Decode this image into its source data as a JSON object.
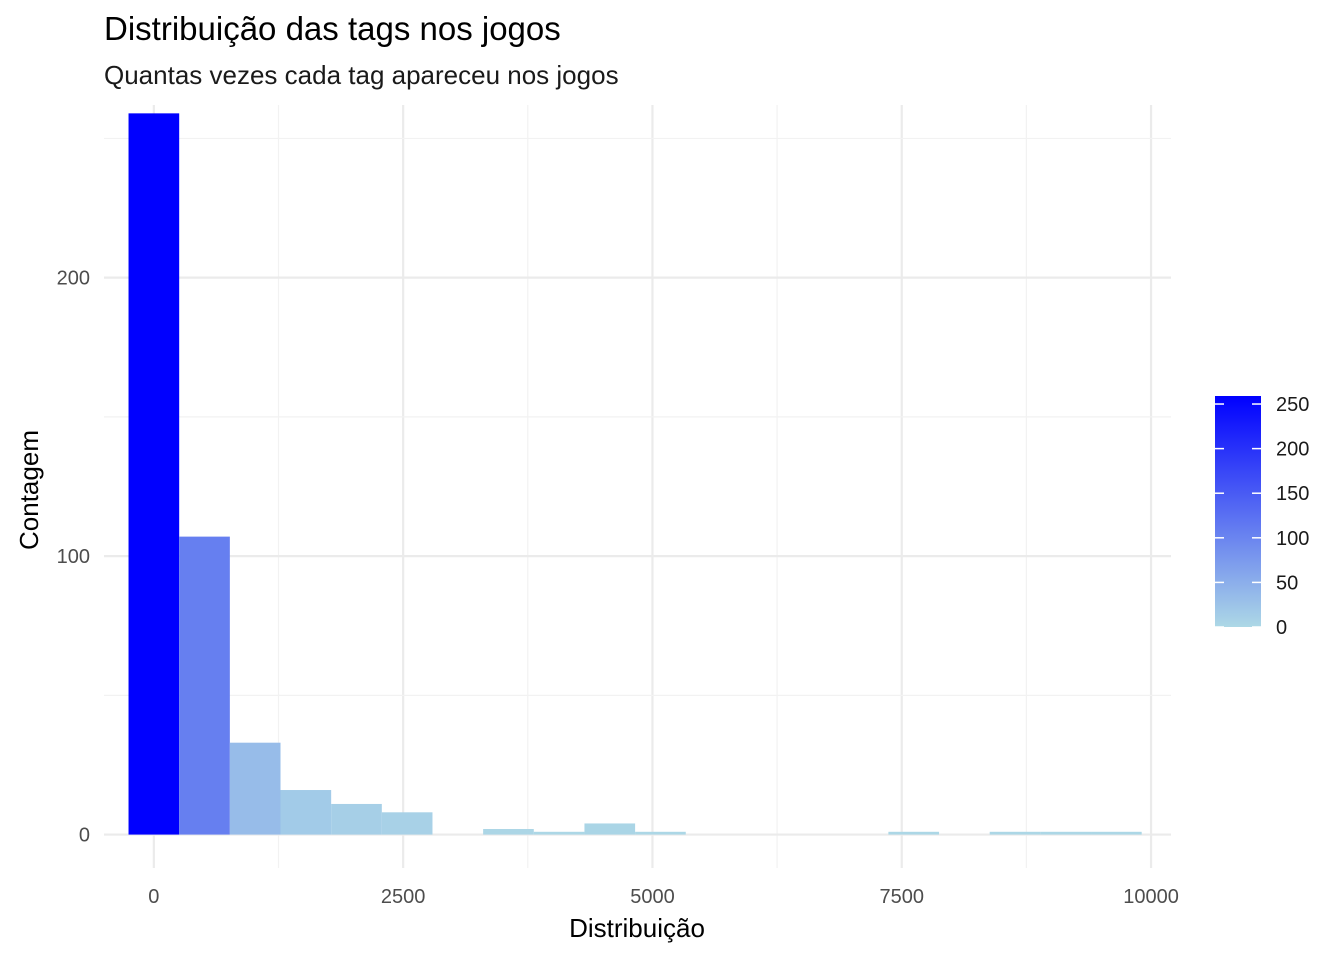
{
  "chart_data": {
    "type": "bar",
    "title": "Distribuição das tags nos jogos",
    "subtitle": "Quantas vezes cada tag apareceu nos jogos",
    "xlabel": "Distribuição",
    "ylabel": "Contagem",
    "xlim": [
      -500,
      10200
    ],
    "ylim": [
      -12,
      262
    ],
    "x_ticks": [
      0,
      2500,
      5000,
      7500,
      10000
    ],
    "x_tick_labels": [
      "0",
      "2500",
      "5000",
      "7500",
      "10000"
    ],
    "y_ticks": [
      0,
      100,
      200
    ],
    "y_tick_labels": [
      "0",
      "100",
      "200"
    ],
    "bin_width": 508,
    "bins": [
      {
        "x": 0,
        "count": 259
      },
      {
        "x": 508,
        "count": 107
      },
      {
        "x": 1016,
        "count": 33
      },
      {
        "x": 1524,
        "count": 16
      },
      {
        "x": 2032,
        "count": 11
      },
      {
        "x": 2540,
        "count": 8
      },
      {
        "x": 3048,
        "count": 0
      },
      {
        "x": 3556,
        "count": 2
      },
      {
        "x": 4064,
        "count": 1
      },
      {
        "x": 4572,
        "count": 4
      },
      {
        "x": 5080,
        "count": 1
      },
      {
        "x": 5588,
        "count": 0
      },
      {
        "x": 6096,
        "count": 0
      },
      {
        "x": 6604,
        "count": 0
      },
      {
        "x": 7112,
        "count": 0
      },
      {
        "x": 7620,
        "count": 1
      },
      {
        "x": 8128,
        "count": 0
      },
      {
        "x": 8636,
        "count": 1
      },
      {
        "x": 9144,
        "count": 1
      },
      {
        "x": 9652,
        "count": 1
      }
    ],
    "grid": true,
    "fill_scale": {
      "low_color": "#ADD8E6",
      "high_color": "#0000FF",
      "min": 0,
      "max": 259
    },
    "legend": {
      "position": "right",
      "ticks": [
        0,
        50,
        100,
        150,
        200,
        250
      ],
      "tick_labels": [
        "0",
        "50",
        "100",
        "150",
        "200",
        "250"
      ]
    }
  }
}
